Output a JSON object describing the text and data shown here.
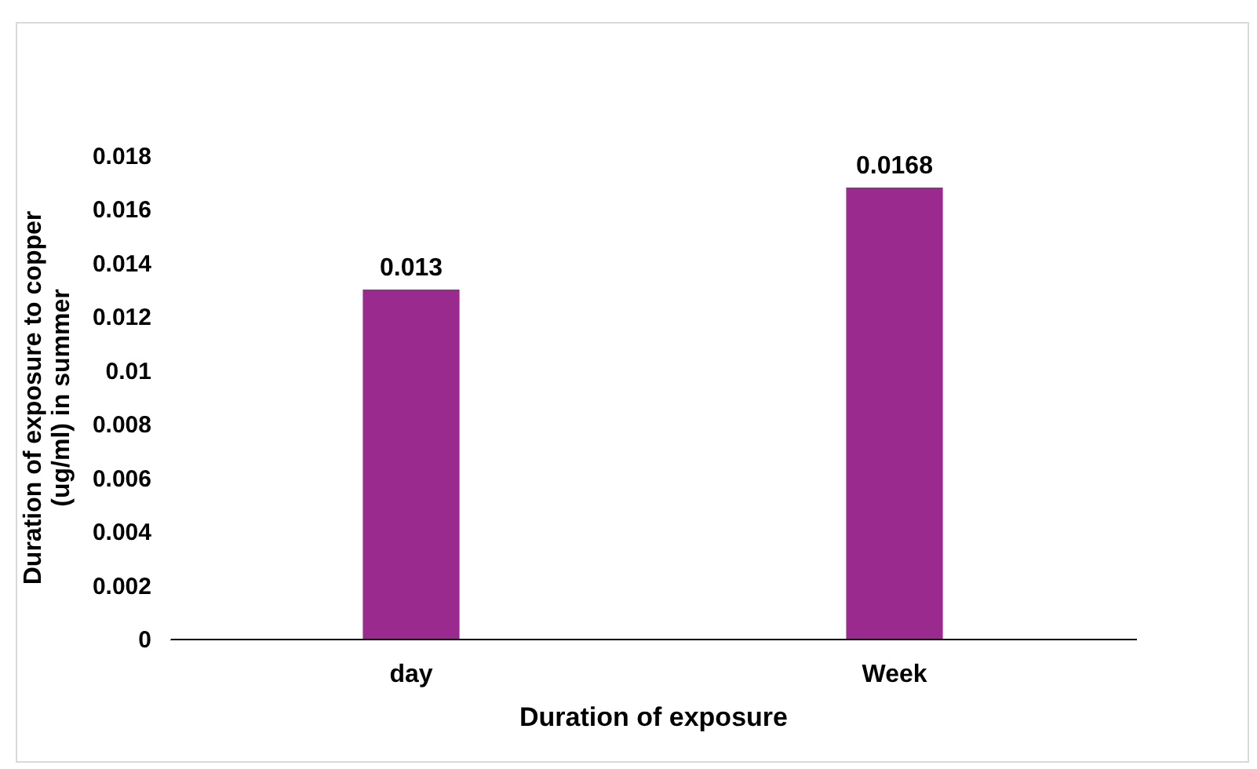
{
  "chart_data": {
    "type": "bar",
    "xlabel": "Duration of exposure",
    "ylabel": "Duration of exposure to copper\n(ug/ml) in summer",
    "categories": [
      "day",
      "Week"
    ],
    "values": [
      0.013,
      0.0168
    ],
    "color": "#9b2a8f",
    "ylim": [
      0,
      0.018
    ],
    "yticks": [
      0,
      0.002,
      0.004,
      0.006,
      0.008,
      0.01,
      0.012,
      0.014,
      0.016,
      0.018
    ],
    "grid": false,
    "data_labels": true
  }
}
